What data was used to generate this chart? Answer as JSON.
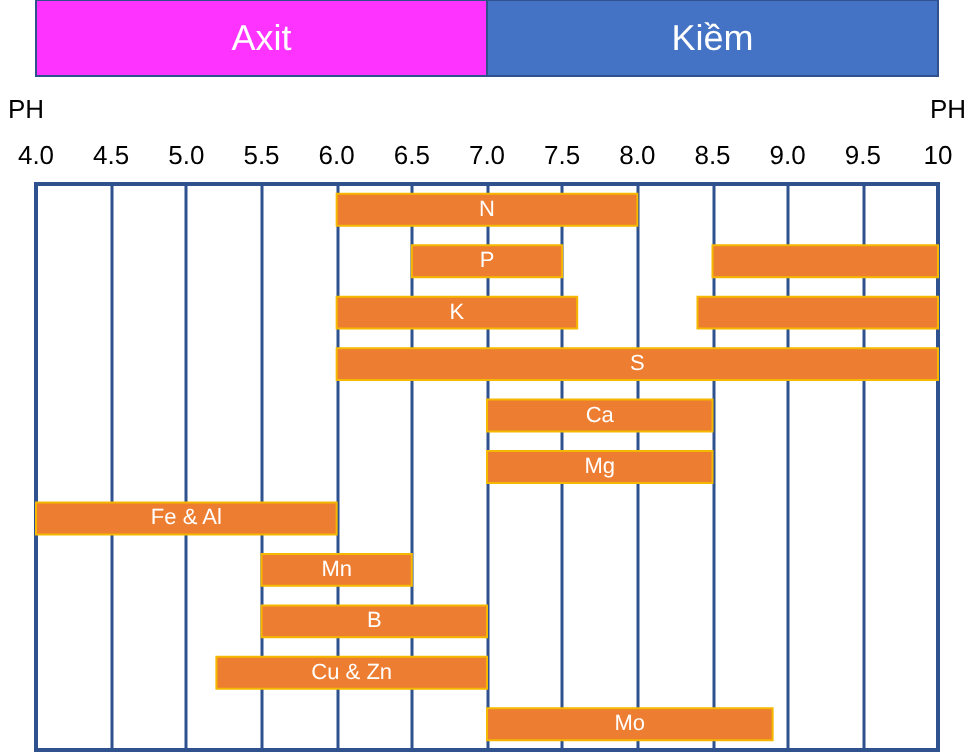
{
  "chart_data": {
    "type": "bar",
    "orientation": "horizontal",
    "xlabel": "PH",
    "categories": [
      "N",
      "P",
      "K",
      "S",
      "Ca",
      "Mg",
      "Fe & Al",
      "Mn",
      "B",
      "Cu & Zn",
      "Mo"
    ],
    "series": [
      {
        "color": "#ed7d31",
        "base": [
          6.0,
          6.5,
          6.0,
          6.0,
          7.0,
          7.0,
          4.0,
          5.5,
          5.5,
          5.2,
          7.0
        ],
        "values": [
          2.0,
          1.0,
          1.6,
          4.0,
          1.5,
          1.5,
          2.0,
          1.0,
          1.5,
          1.8,
          1.9
        ]
      },
      {
        "color": "#ed7d31",
        "base": [
          null,
          8.5,
          8.4,
          null,
          null,
          null,
          null,
          null,
          null,
          null,
          null
        ],
        "values": [
          null,
          1.5,
          1.6,
          null,
          null,
          null,
          null,
          null,
          null,
          null,
          null
        ]
      }
    ],
    "annotations": [
      "Axit",
      "Kiềm"
    ],
    "xlim": [
      4,
      10
    ],
    "xticks": [
      {
        "value": 4,
        "label": "4.0"
      },
      4.5,
      {
        "value": 5,
        "label": "5.0"
      },
      5.5,
      {
        "value": 6,
        "label": "6.0"
      },
      6.5,
      {
        "value": 7,
        "label": "7.0"
      },
      7.5,
      {
        "value": 8,
        "label": "8.0"
      },
      8.5,
      {
        "value": 9,
        "label": "9.0"
      },
      9.5,
      10
    ],
    "tick_labels": "x",
    "grid": "x"
  }
}
